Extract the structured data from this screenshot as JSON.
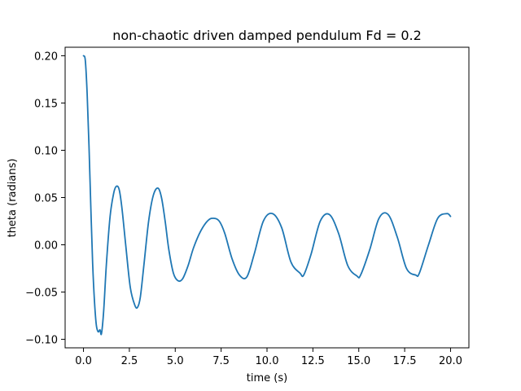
{
  "chart_data": {
    "type": "line",
    "title": "non-chaotic driven damped pendulum Fd = 0.2",
    "xlabel": "time (s)",
    "ylabel": "theta (radians)",
    "xlim": [
      -1.0,
      21.0
    ],
    "ylim": [
      -0.109,
      0.209
    ],
    "x_ticks": [
      0.0,
      2.5,
      5.0,
      7.5,
      10.0,
      12.5,
      15.0,
      17.5,
      20.0
    ],
    "x_tick_labels": [
      "0.0",
      "2.5",
      "5.0",
      "7.5",
      "10.0",
      "12.5",
      "15.0",
      "17.5",
      "20.0"
    ],
    "y_ticks": [
      -0.1,
      -0.05,
      0.0,
      0.05,
      0.1,
      0.15,
      0.2
    ],
    "y_tick_labels": [
      "−0.10",
      "−0.05",
      "0.00",
      "0.05",
      "0.10",
      "0.15",
      "0.20"
    ],
    "grid": false,
    "colors": {
      "line": "#1f77b4"
    },
    "series": [
      {
        "x": [
          0.0,
          0.1,
          0.2,
          0.3,
          0.4,
          0.5,
          0.6,
          0.7,
          0.8,
          0.9,
          0.98,
          1.1,
          1.25,
          1.45,
          1.65,
          1.8,
          1.95,
          2.1,
          2.3,
          2.55,
          2.8,
          2.95,
          3.1,
          3.3,
          3.55,
          3.8,
          4.05,
          4.25,
          4.45,
          4.65,
          4.9,
          5.15,
          5.4,
          5.7,
          6.0,
          6.4,
          6.8,
          7.1,
          7.4,
          7.7,
          8.1,
          8.5,
          8.9,
          9.3,
          9.8,
          10.3,
          10.8,
          11.3,
          11.8,
          12.0,
          12.4,
          12.9,
          13.4,
          13.9,
          14.4,
          14.9,
          15.1,
          15.6,
          16.1,
          16.6,
          17.1,
          17.6,
          18.1,
          18.3,
          18.8,
          19.3,
          19.8,
          20.0
        ],
        "y": [
          0.2,
          0.195,
          0.16,
          0.105,
          0.04,
          -0.02,
          -0.06,
          -0.085,
          -0.092,
          -0.09,
          -0.094,
          -0.07,
          -0.02,
          0.03,
          0.055,
          0.062,
          0.058,
          0.038,
          0.0,
          -0.045,
          -0.064,
          -0.066,
          -0.055,
          -0.02,
          0.025,
          0.052,
          0.06,
          0.05,
          0.025,
          -0.005,
          -0.03,
          -0.038,
          -0.036,
          -0.022,
          -0.003,
          0.015,
          0.026,
          0.028,
          0.025,
          0.012,
          -0.015,
          -0.032,
          -0.034,
          -0.01,
          0.025,
          0.033,
          0.018,
          -0.018,
          -0.03,
          -0.032,
          -0.01,
          0.025,
          0.032,
          0.012,
          -0.022,
          -0.033,
          -0.032,
          -0.005,
          0.028,
          0.032,
          0.008,
          -0.025,
          -0.032,
          -0.03,
          0.0,
          0.028,
          0.033,
          0.03
        ]
      }
    ]
  }
}
